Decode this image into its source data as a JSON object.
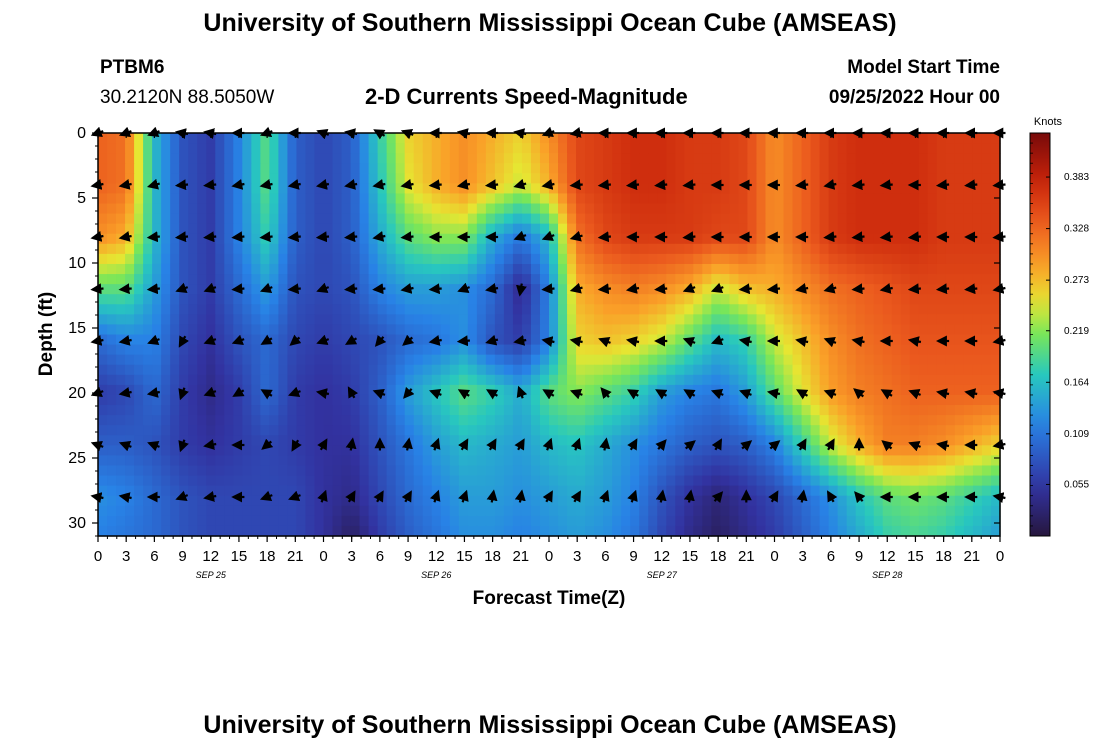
{
  "header": {
    "title": "University of Southern Mississippi Ocean Cube (AMSEAS)",
    "station": "PTBM6",
    "coords": "30.2120N  88.5050W",
    "subtitle": "2-D Currents Speed-Magnitude",
    "model_label": "Model Start Time",
    "model_time": "09/25/2022 Hour 00"
  },
  "footer": {
    "title": "University of Southern Mississippi Ocean Cube (AMSEAS)"
  },
  "chart_data": {
    "type": "heatmap",
    "title": "2-D Currents Speed-Magnitude",
    "xlabel": "Forecast Time(Z)",
    "ylabel": "Depth (ft)",
    "x_range": [
      0,
      96
    ],
    "y_range": [
      0,
      31
    ],
    "x_ticks": [
      "0",
      "3",
      "6",
      "9",
      "12",
      "15",
      "18",
      "21",
      "0",
      "3",
      "6",
      "9",
      "12",
      "15",
      "18",
      "21",
      "0",
      "3",
      "6",
      "9",
      "12",
      "15",
      "18",
      "21",
      "0",
      "3",
      "6",
      "9",
      "12",
      "15",
      "18",
      "21",
      "0"
    ],
    "y_ticks": [
      "0",
      "5",
      "10",
      "15",
      "20",
      "25",
      "30"
    ],
    "day_labels": [
      "SEP 25",
      "SEP 26",
      "SEP 27",
      "SEP 28"
    ],
    "colorbar": {
      "title": "Knots",
      "ticks": [
        "0.055",
        "0.109",
        "0.164",
        "0.219",
        "0.273",
        "0.328",
        "0.383"
      ],
      "range": [
        0,
        0.43
      ]
    },
    "depths_ft": [
      0,
      4,
      8,
      12,
      16,
      20,
      24,
      28,
      31
    ],
    "speed_by_depth": [
      [
        0.33,
        0.32,
        0.16,
        0.08,
        0.06,
        0.12,
        0.2,
        0.09,
        0.07,
        0.09,
        0.18,
        0.26,
        0.28,
        0.3,
        0.28,
        0.26,
        0.3,
        0.35,
        0.36,
        0.37,
        0.37,
        0.36,
        0.36,
        0.35,
        0.3,
        0.33,
        0.36,
        0.37,
        0.37,
        0.37,
        0.36,
        0.36,
        0.36
      ],
      [
        0.33,
        0.32,
        0.16,
        0.08,
        0.06,
        0.12,
        0.2,
        0.09,
        0.07,
        0.09,
        0.17,
        0.25,
        0.28,
        0.3,
        0.27,
        0.24,
        0.28,
        0.35,
        0.36,
        0.37,
        0.37,
        0.36,
        0.36,
        0.35,
        0.3,
        0.33,
        0.36,
        0.37,
        0.37,
        0.37,
        0.36,
        0.36,
        0.36
      ],
      [
        0.3,
        0.28,
        0.16,
        0.08,
        0.06,
        0.12,
        0.18,
        0.09,
        0.07,
        0.09,
        0.15,
        0.2,
        0.22,
        0.22,
        0.15,
        0.11,
        0.16,
        0.32,
        0.35,
        0.36,
        0.36,
        0.36,
        0.35,
        0.35,
        0.3,
        0.33,
        0.36,
        0.37,
        0.37,
        0.37,
        0.36,
        0.36,
        0.36
      ],
      [
        0.2,
        0.2,
        0.14,
        0.08,
        0.06,
        0.1,
        0.14,
        0.08,
        0.07,
        0.08,
        0.12,
        0.14,
        0.14,
        0.13,
        0.1,
        0.04,
        0.12,
        0.28,
        0.3,
        0.31,
        0.3,
        0.28,
        0.24,
        0.27,
        0.28,
        0.3,
        0.32,
        0.33,
        0.34,
        0.35,
        0.35,
        0.35,
        0.35
      ],
      [
        0.1,
        0.12,
        0.12,
        0.07,
        0.05,
        0.08,
        0.1,
        0.07,
        0.06,
        0.07,
        0.08,
        0.1,
        0.11,
        0.13,
        0.08,
        0.06,
        0.12,
        0.26,
        0.27,
        0.26,
        0.24,
        0.2,
        0.16,
        0.18,
        0.24,
        0.27,
        0.3,
        0.32,
        0.33,
        0.34,
        0.34,
        0.34,
        0.34
      ],
      [
        0.06,
        0.07,
        0.1,
        0.06,
        0.04,
        0.06,
        0.1,
        0.06,
        0.05,
        0.06,
        0.09,
        0.14,
        0.17,
        0.2,
        0.18,
        0.15,
        0.2,
        0.22,
        0.2,
        0.18,
        0.14,
        0.12,
        0.11,
        0.14,
        0.2,
        0.25,
        0.29,
        0.31,
        0.32,
        0.33,
        0.33,
        0.33,
        0.33
      ],
      [
        0.09,
        0.09,
        0.08,
        0.06,
        0.05,
        0.06,
        0.07,
        0.06,
        0.05,
        0.05,
        0.08,
        0.11,
        0.14,
        0.16,
        0.15,
        0.14,
        0.16,
        0.17,
        0.15,
        0.13,
        0.11,
        0.09,
        0.08,
        0.09,
        0.12,
        0.18,
        0.24,
        0.28,
        0.31,
        0.31,
        0.3,
        0.28,
        0.26
      ],
      [
        0.13,
        0.12,
        0.1,
        0.08,
        0.07,
        0.07,
        0.07,
        0.07,
        0.05,
        0.04,
        0.07,
        0.1,
        0.12,
        0.14,
        0.14,
        0.13,
        0.14,
        0.15,
        0.14,
        0.12,
        0.08,
        0.05,
        0.03,
        0.05,
        0.07,
        0.1,
        0.13,
        0.17,
        0.2,
        0.21,
        0.2,
        0.18,
        0.16
      ],
      [
        0.12,
        0.11,
        0.1,
        0.08,
        0.07,
        0.07,
        0.07,
        0.07,
        0.05,
        0.02,
        0.06,
        0.09,
        0.11,
        0.13,
        0.13,
        0.12,
        0.13,
        0.14,
        0.13,
        0.11,
        0.07,
        0.04,
        0.02,
        0.04,
        0.06,
        0.09,
        0.12,
        0.15,
        0.18,
        0.19,
        0.18,
        0.16,
        0.14
      ]
    ],
    "arrow_depths_ft": [
      0,
      4,
      8,
      12,
      16,
      20,
      24,
      28
    ],
    "arrow_direction_deg_by_depth": [
      [
        200,
        200,
        200,
        170,
        170,
        180,
        200,
        180,
        160,
        170,
        150,
        160,
        180,
        170,
        180,
        170,
        200,
        190,
        180,
        180,
        180,
        180,
        180,
        180,
        180,
        180,
        180,
        180,
        180,
        180,
        180,
        180,
        180
      ],
      [
        190,
        190,
        195,
        185,
        185,
        190,
        190,
        190,
        190,
        190,
        190,
        190,
        185,
        190,
        185,
        195,
        190,
        185,
        185,
        185,
        185,
        185,
        180,
        180,
        180,
        185,
        190,
        185,
        185,
        180,
        185,
        185,
        185
      ],
      [
        190,
        190,
        185,
        185,
        185,
        185,
        185,
        185,
        185,
        185,
        190,
        185,
        180,
        180,
        180,
        200,
        200,
        195,
        185,
        180,
        180,
        185,
        180,
        180,
        180,
        180,
        185,
        185,
        185,
        185,
        180,
        180,
        185
      ],
      [
        185,
        185,
        185,
        200,
        200,
        185,
        200,
        185,
        200,
        185,
        185,
        190,
        185,
        200,
        190,
        260,
        185,
        195,
        185,
        190,
        185,
        200,
        200,
        185,
        185,
        190,
        195,
        185,
        190,
        185,
        185,
        185,
        190
      ],
      [
        190,
        190,
        200,
        240,
        200,
        200,
        210,
        220,
        200,
        210,
        230,
        220,
        190,
        185,
        195,
        190,
        170,
        170,
        160,
        170,
        180,
        160,
        200,
        170,
        180,
        170,
        160,
        170,
        180,
        170,
        180,
        180,
        190
      ],
      [
        200,
        190,
        190,
        250,
        200,
        210,
        150,
        200,
        170,
        120,
        160,
        230,
        160,
        150,
        150,
        110,
        150,
        160,
        130,
        150,
        150,
        150,
        160,
        160,
        170,
        150,
        160,
        140,
        150,
        160,
        170,
        170,
        170
      ],
      [
        160,
        160,
        160,
        250,
        190,
        180,
        220,
        240,
        60,
        80,
        90,
        80,
        70,
        60,
        60,
        60,
        70,
        70,
        80,
        60,
        50,
        40,
        60,
        40,
        40,
        60,
        60,
        90,
        140,
        160,
        170,
        180,
        190
      ],
      [
        170,
        170,
        180,
        200,
        190,
        180,
        200,
        200,
        70,
        60,
        60,
        60,
        70,
        70,
        80,
        80,
        60,
        60,
        70,
        70,
        80,
        80,
        50,
        90,
        60,
        80,
        120,
        130,
        180,
        180,
        180,
        180,
        170
      ]
    ]
  }
}
